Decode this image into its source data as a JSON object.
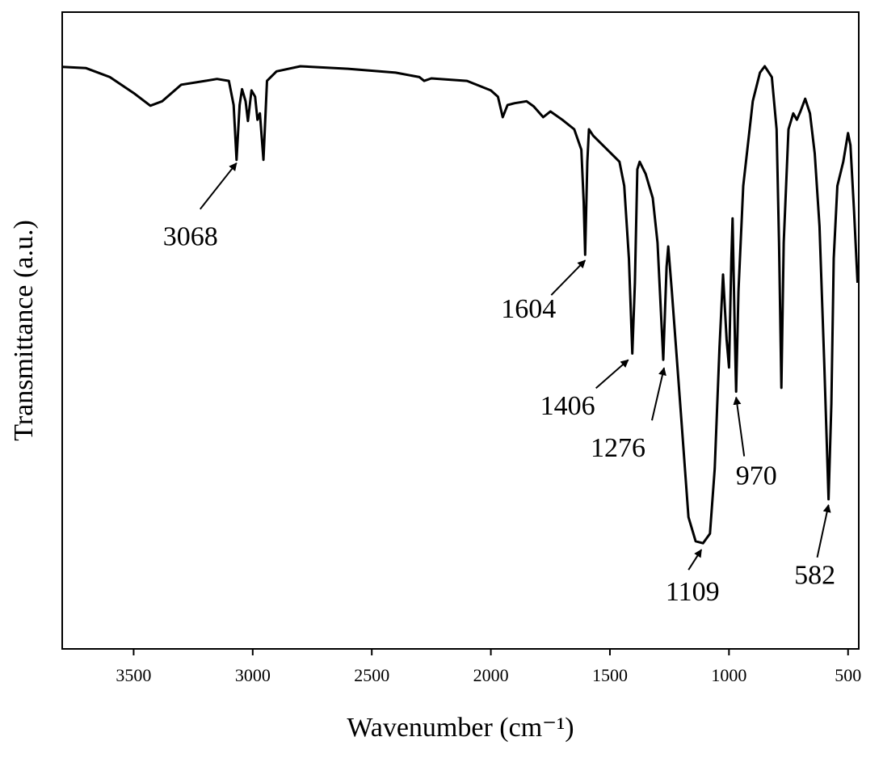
{
  "chart_data": {
    "type": "line",
    "x_label": "Wavenumber (cm⁻¹)",
    "y_label": "Transmittance (a.u.)",
    "x": [
      3800,
      3700,
      3600,
      3500,
      3430,
      3380,
      3300,
      3200,
      3150,
      3100,
      3080,
      3068,
      3055,
      3045,
      3030,
      3020,
      3005,
      2990,
      2980,
      2970,
      2955,
      2940,
      2900,
      2800,
      2600,
      2400,
      2300,
      2280,
      2250,
      2100,
      2000,
      1970,
      1950,
      1930,
      1900,
      1850,
      1820,
      1780,
      1750,
      1700,
      1650,
      1620,
      1610,
      1604,
      1595,
      1588,
      1570,
      1500,
      1460,
      1440,
      1420,
      1406,
      1395,
      1385,
      1375,
      1350,
      1320,
      1300,
      1276,
      1262,
      1255,
      1240,
      1200,
      1170,
      1140,
      1109,
      1080,
      1060,
      1040,
      1025,
      1010,
      1000,
      990,
      985,
      975,
      970,
      960,
      940,
      900,
      870,
      850,
      820,
      800,
      790,
      780,
      770,
      750,
      730,
      715,
      700,
      680,
      660,
      640,
      620,
      600,
      582,
      570,
      560,
      545,
      520,
      500,
      490,
      475,
      460
    ],
    "values": [
      91.4,
      91.2,
      89.8,
      87.3,
      85.3,
      86.0,
      88.6,
      89.2,
      89.5,
      89.2,
      85.4,
      76.8,
      85.4,
      87.9,
      86.0,
      82.9,
      87.7,
      86.7,
      83.1,
      84.1,
      76.8,
      89.2,
      90.7,
      91.5,
      91.1,
      90.5,
      89.8,
      89.2,
      89.6,
      89.2,
      87.7,
      86.7,
      83.5,
      85.4,
      85.7,
      86.0,
      85.2,
      83.5,
      84.4,
      83.1,
      81.6,
      78.4,
      70.2,
      61.9,
      76.5,
      81.6,
      80.6,
      78.0,
      76.5,
      72.7,
      61.3,
      46.4,
      57.5,
      75.3,
      76.5,
      74.6,
      70.8,
      63.8,
      45.4,
      60.0,
      63.2,
      56.2,
      36.0,
      20.7,
      16.9,
      16.6,
      18.1,
      28.3,
      47.3,
      58.8,
      48.6,
      44.2,
      61.3,
      67.6,
      48.6,
      40.4,
      56.2,
      72.7,
      86.0,
      90.5,
      91.5,
      89.8,
      81.6,
      63.8,
      41.0,
      63.8,
      81.6,
      84.1,
      83.1,
      84.4,
      86.4,
      84.1,
      77.8,
      66.4,
      44.8,
      23.5,
      38.5,
      61.3,
      72.7,
      76.5,
      81.0,
      79.1,
      68.9,
      57.5
    ],
    "color": "#000000",
    "xlim": [
      3800,
      455
    ],
    "ylim": [
      0,
      100
    ],
    "xticks": [
      3500,
      3000,
      2500,
      2000,
      1500,
      1000,
      500
    ],
    "peaks": [
      3068,
      1604,
      1406,
      1276,
      1109,
      970,
      582
    ]
  }
}
